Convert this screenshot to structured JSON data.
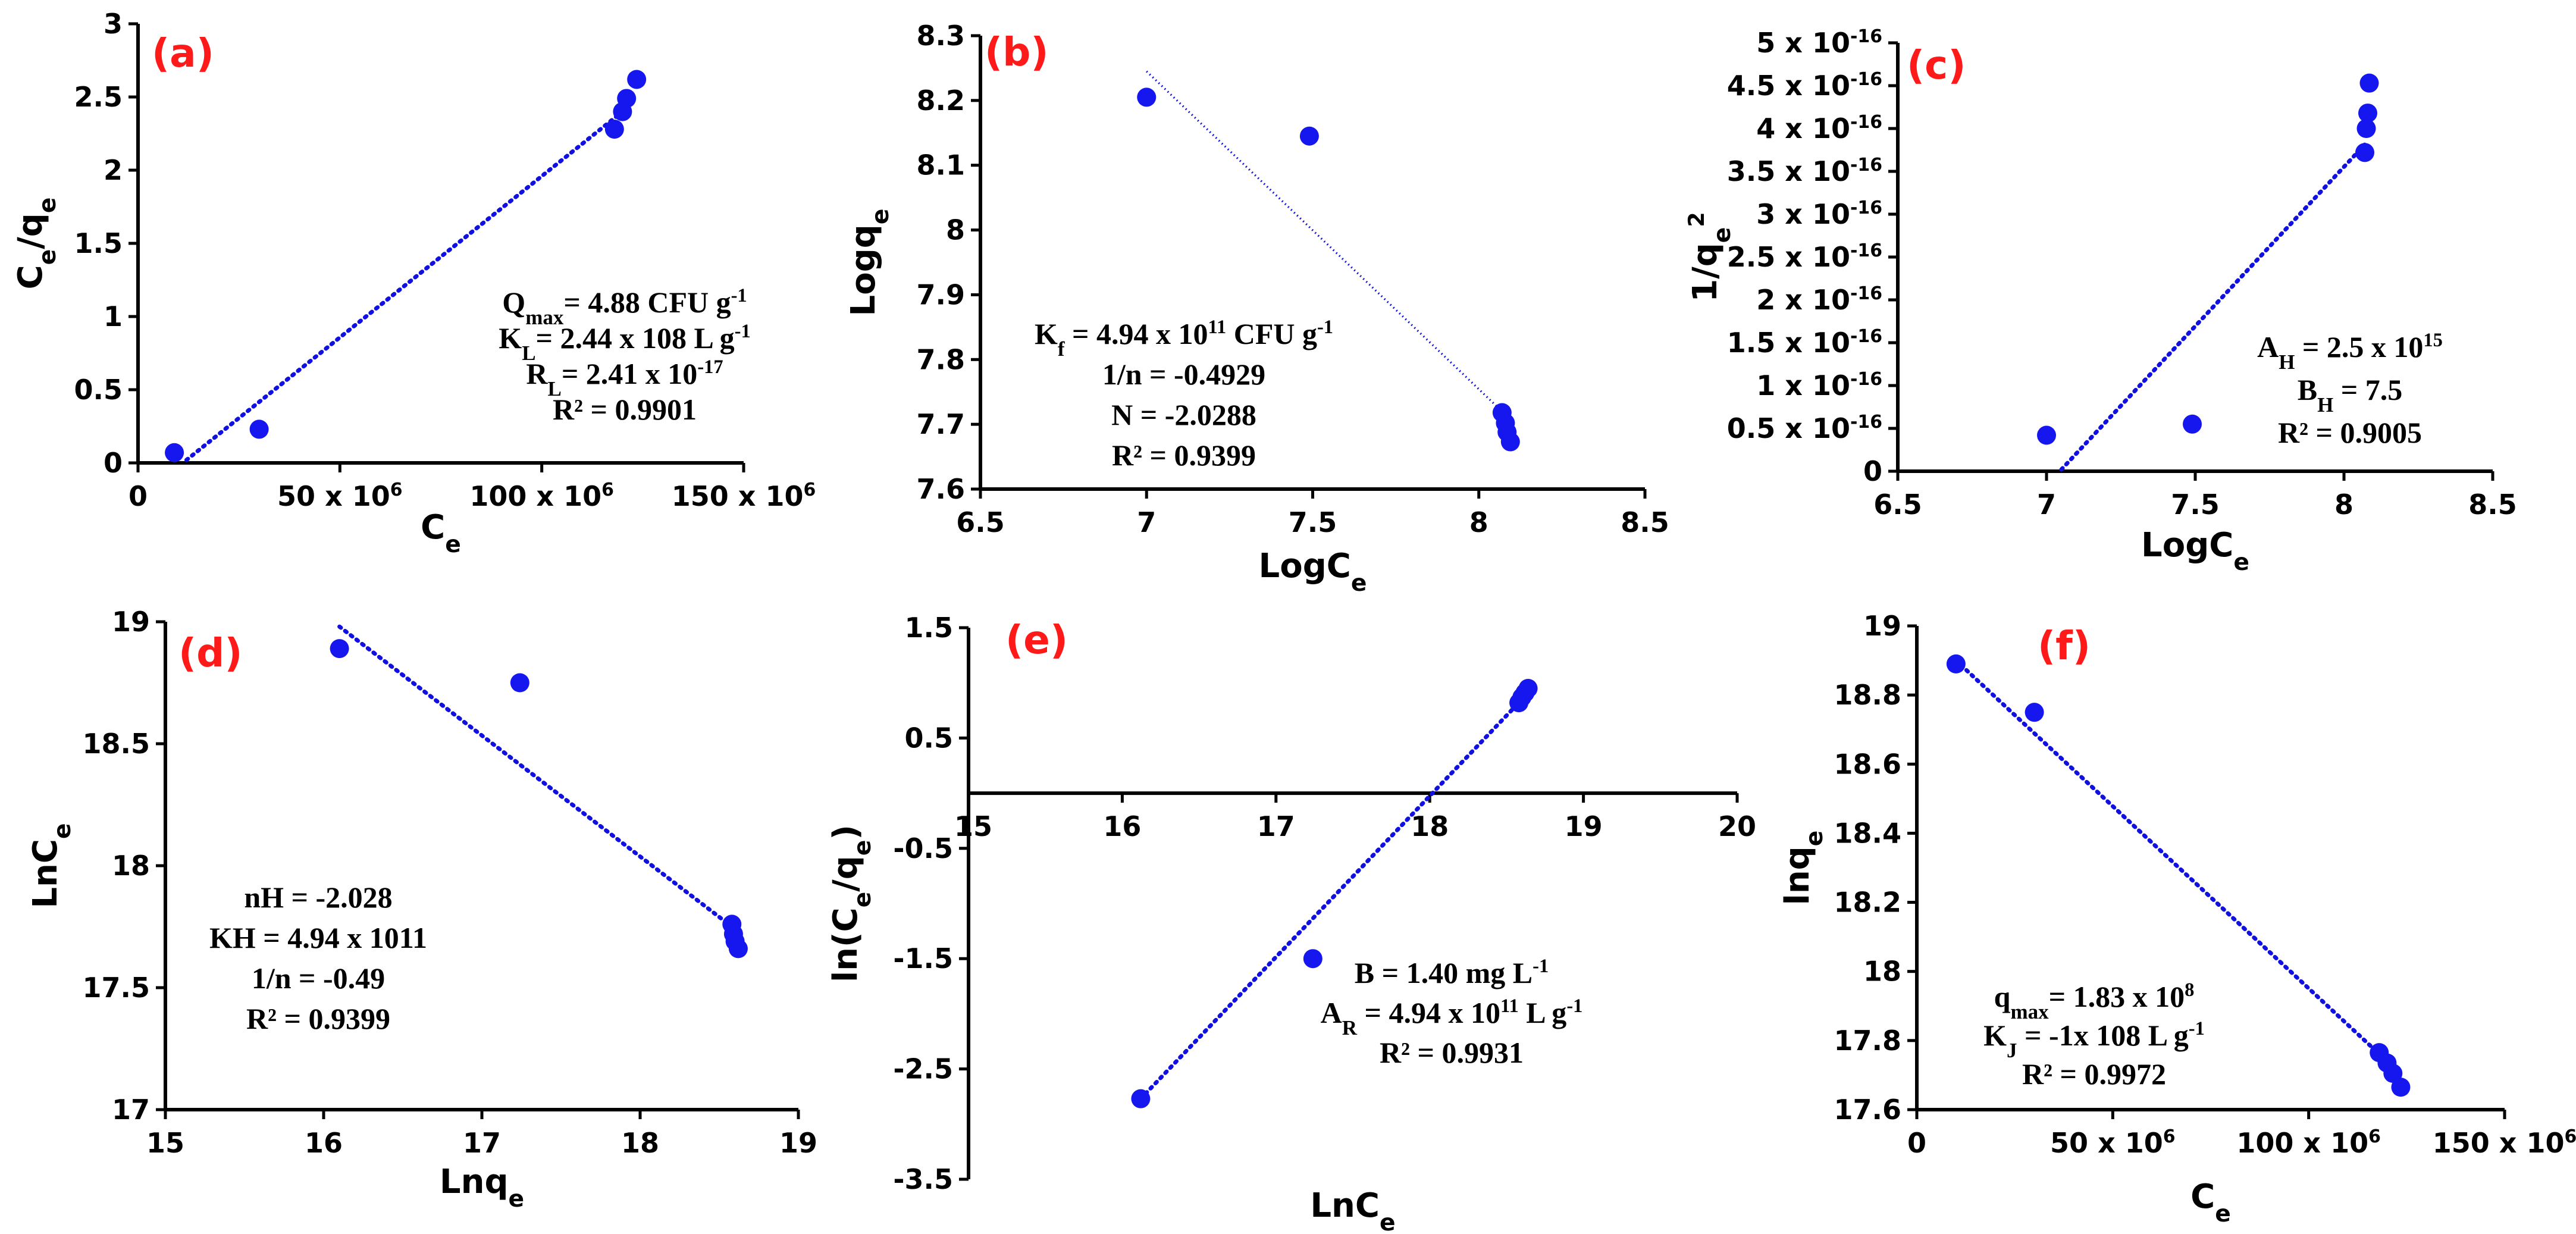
{
  "colors": {
    "points": "#1616ee",
    "fit_line": "#1010e0",
    "panel_tag": "#ff1a1a",
    "axes": "#000000"
  },
  "chart_data": [
    {
      "id": "a",
      "tag": "(a)",
      "type": "scatter",
      "xlabel": {
        "main": "C",
        "sub": "e"
      },
      "ylabel": {
        "main": "C",
        "sub1": "e",
        "mid": "/q",
        "sub2": "e"
      },
      "xlim": [
        0,
        150000000
      ],
      "ylim": [
        0,
        3
      ],
      "xticks": [
        {
          "v": 0,
          "label": "0"
        },
        {
          "v": 50000000,
          "label": "50 x 10",
          "exp": "6"
        },
        {
          "v": 100000000,
          "label": "100 x 10",
          "exp": "6"
        },
        {
          "v": 150000000,
          "label": "150 x 10",
          "exp": "6"
        }
      ],
      "yticks": [
        {
          "v": 0,
          "label": "0"
        },
        {
          "v": 0.5,
          "label": "0.5"
        },
        {
          "v": 1,
          "label": "1"
        },
        {
          "v": 1.5,
          "label": "1.5"
        },
        {
          "v": 2,
          "label": "2"
        },
        {
          "v": 2.5,
          "label": "2.5"
        },
        {
          "v": 3,
          "label": "3"
        }
      ],
      "points": [
        [
          9000000,
          0.07
        ],
        [
          30000000,
          0.23
        ],
        [
          118000000,
          2.28
        ],
        [
          120000000,
          2.4
        ],
        [
          121000000,
          2.49
        ],
        [
          123500000,
          2.62
        ]
      ],
      "fit": [
        [
          12000000,
          0.02
        ],
        [
          120000000,
          2.4
        ]
      ],
      "annotation": [
        [
          {
            "t": "Q"
          },
          {
            "t": "max",
            "sub": true
          },
          {
            "t": "= 4.88 CFU g"
          },
          {
            "t": "-1",
            "sup": true
          }
        ],
        [
          {
            "t": "K"
          },
          {
            "t": "L",
            "sub": true
          },
          {
            "t": "= 2.44 x 108 L g"
          },
          {
            "t": "-1",
            "sup": true
          }
        ],
        [
          {
            "t": "R"
          },
          {
            "t": "L",
            "sub": true
          },
          {
            "t": "= 2.41 x 10"
          },
          {
            "t": "-17",
            "sup": true
          }
        ],
        [
          {
            "t": "R² = 0.9901"
          }
        ]
      ]
    },
    {
      "id": "b",
      "tag": "(b)",
      "type": "scatter",
      "xlabel": {
        "main": "LogC",
        "sub": "e"
      },
      "ylabel": {
        "main": "Logq",
        "sub": "e"
      },
      "xlim": [
        6.5,
        8.5
      ],
      "ylim": [
        7.6,
        8.3
      ],
      "xticks": [
        {
          "v": 6.5,
          "label": "6.5"
        },
        {
          "v": 7,
          "label": "7"
        },
        {
          "v": 7.5,
          "label": "7.5"
        },
        {
          "v": 8,
          "label": "8"
        },
        {
          "v": 8.5,
          "label": "8.5"
        }
      ],
      "yticks": [
        {
          "v": 7.6,
          "label": "7.6"
        },
        {
          "v": 7.7,
          "label": "7.7"
        },
        {
          "v": 7.8,
          "label": "7.8"
        },
        {
          "v": 7.9,
          "label": "7.9"
        },
        {
          "v": 8,
          "label": "8"
        },
        {
          "v": 8.1,
          "label": "8.1"
        },
        {
          "v": 8.2,
          "label": "8.2"
        },
        {
          "v": 8.3,
          "label": "8.3"
        }
      ],
      "points": [
        [
          7.0,
          8.205
        ],
        [
          7.49,
          8.145
        ],
        [
          8.07,
          7.718
        ],
        [
          8.08,
          7.702
        ],
        [
          8.085,
          7.688
        ],
        [
          8.095,
          7.673
        ]
      ],
      "fit": [
        [
          7.0,
          8.245
        ],
        [
          8.08,
          7.715
        ]
      ],
      "annotation": [
        [
          {
            "t": "K"
          },
          {
            "t": "f",
            "sub": true
          },
          {
            "t": " = 4.94 x 10"
          },
          {
            "t": "11",
            "sup": true
          },
          {
            "t": " CFU g"
          },
          {
            "t": "-1",
            "sup": true
          }
        ],
        [
          {
            "t": "1/n = -0.4929"
          }
        ],
        [
          {
            "t": "N = -2.0288"
          }
        ],
        [
          {
            "t": "R² = 0.9399"
          }
        ]
      ]
    },
    {
      "id": "c",
      "tag": "(c)",
      "type": "scatter",
      "xlabel": {
        "main": "LogC",
        "sub": "e"
      },
      "ylabel": {
        "main": "1/q",
        "sub": "e",
        "sup": "2"
      },
      "xlim": [
        6.5,
        8.5
      ],
      "ylim": [
        0,
        5
      ],
      "xticks": [
        {
          "v": 6.5,
          "label": "6.5"
        },
        {
          "v": 7,
          "label": "7"
        },
        {
          "v": 7.5,
          "label": "7.5"
        },
        {
          "v": 8,
          "label": "8"
        },
        {
          "v": 8.5,
          "label": "8.5"
        }
      ],
      "yticks": [
        {
          "v": 0,
          "label": "0"
        },
        {
          "v": 0.5,
          "label": "0.5 x 10",
          "exp": "-16"
        },
        {
          "v": 1,
          "label": "1 x 10",
          "exp": "-16"
        },
        {
          "v": 1.5,
          "label": "1.5 x 10",
          "exp": "-16"
        },
        {
          "v": 2,
          "label": "2 x 10",
          "exp": "-16"
        },
        {
          "v": 2.5,
          "label": "2.5 x 10",
          "exp": "-16"
        },
        {
          "v": 3,
          "label": "3 x 10",
          "exp": "-16"
        },
        {
          "v": 3.5,
          "label": "3.5 x 10",
          "exp": "-16"
        },
        {
          "v": 4,
          "label": "4 x 10",
          "exp": "-16"
        },
        {
          "v": 4.5,
          "label": "4.5 x 10",
          "exp": "-16"
        },
        {
          "v": 5,
          "label": "5 x 10",
          "exp": "-16"
        }
      ],
      "y_unit_note": "values x 10^-16",
      "points": [
        [
          7.0,
          0.42
        ],
        [
          7.49,
          0.55
        ],
        [
          8.07,
          3.72
        ],
        [
          8.075,
          4.0
        ],
        [
          8.08,
          4.18
        ],
        [
          8.085,
          4.53
        ]
      ],
      "fit": [
        [
          7.05,
          0.02
        ],
        [
          8.08,
          3.85
        ]
      ],
      "annotation": [
        [
          {
            "t": "A"
          },
          {
            "t": "H",
            "sub": true
          },
          {
            "t": " = 2.5 x 10"
          },
          {
            "t": "15",
            "sup": true
          }
        ],
        [
          {
            "t": "B"
          },
          {
            "t": "H",
            "sub": true
          },
          {
            "t": " = 7.5"
          }
        ],
        [
          {
            "t": "R² = 0.9005"
          }
        ]
      ]
    },
    {
      "id": "d",
      "tag": "(d)",
      "type": "scatter",
      "xlabel": {
        "main": "Lnq",
        "sub": "e"
      },
      "ylabel": {
        "main": "LnC",
        "sub": "e"
      },
      "xlim": [
        15,
        19
      ],
      "ylim": [
        17,
        19
      ],
      "xticks": [
        {
          "v": 15,
          "label": "15"
        },
        {
          "v": 16,
          "label": "16"
        },
        {
          "v": 17,
          "label": "17"
        },
        {
          "v": 18,
          "label": "18"
        },
        {
          "v": 19,
          "label": "19"
        }
      ],
      "yticks": [
        {
          "v": 17,
          "label": "17"
        },
        {
          "v": 17.5,
          "label": "17.5"
        },
        {
          "v": 18,
          "label": "18"
        },
        {
          "v": 18.5,
          "label": "18.5"
        },
        {
          "v": 19,
          "label": "19"
        }
      ],
      "points": [
        [
          16.1,
          18.89
        ],
        [
          17.24,
          18.75
        ],
        [
          18.58,
          17.76
        ],
        [
          18.59,
          17.72
        ],
        [
          18.6,
          17.69
        ],
        [
          18.62,
          17.66
        ]
      ],
      "fit": [
        [
          16.1,
          18.98
        ],
        [
          18.6,
          17.74
        ]
      ],
      "annotation": [
        [
          {
            "t": "nH = -2.028"
          }
        ],
        [
          {
            "t": "KH = 4.94 x 1011"
          }
        ],
        [
          {
            "t": "1/n = -0.49"
          }
        ],
        [
          {
            "t": "R² = 0.9399"
          }
        ]
      ]
    },
    {
      "id": "e",
      "tag": "(e)",
      "type": "scatter",
      "xlabel": {
        "main": "LnC",
        "sub": "e"
      },
      "ylabel": {
        "main": "ln(C",
        "sub1": "e",
        "mid": "/q",
        "sub2": "e",
        "end": ")"
      },
      "xlim": [
        15,
        20
      ],
      "ylim": [
        -3.5,
        1.5
      ],
      "x_axis_at_y": 0,
      "xticks": [
        {
          "v": 15,
          "label": "15"
        },
        {
          "v": 16,
          "label": "16"
        },
        {
          "v": 17,
          "label": "17"
        },
        {
          "v": 18,
          "label": "18"
        },
        {
          "v": 19,
          "label": "19"
        },
        {
          "v": 20,
          "label": "20"
        }
      ],
      "yticks": [
        {
          "v": -3.5,
          "label": "-3.5"
        },
        {
          "v": -2.5,
          "label": "-2.5"
        },
        {
          "v": -1.5,
          "label": "-1.5"
        },
        {
          "v": -0.5,
          "label": "-0.5"
        },
        {
          "v": 0.5,
          "label": "0.5"
        },
        {
          "v": 1.5,
          "label": "1.5"
        }
      ],
      "points": [
        [
          16.12,
          -2.77
        ],
        [
          17.24,
          -1.5
        ],
        [
          18.58,
          0.82
        ],
        [
          18.6,
          0.87
        ],
        [
          18.62,
          0.91
        ],
        [
          18.64,
          0.95
        ]
      ],
      "fit": [
        [
          16.12,
          -2.77
        ],
        [
          18.6,
          0.85
        ]
      ],
      "annotation": [
        [
          {
            "t": "B = 1.40 mg L"
          },
          {
            "t": "-1",
            "sup": true
          }
        ],
        [
          {
            "t": "A"
          },
          {
            "t": "R",
            "sub": true
          },
          {
            "t": " = 4.94 x 10"
          },
          {
            "t": "11",
            "sup": true
          },
          {
            "t": " L g"
          },
          {
            "t": "-1",
            "sup": true
          }
        ],
        [
          {
            "t": "R² = 0.9931"
          }
        ]
      ]
    },
    {
      "id": "f",
      "tag": "(f)",
      "type": "scatter",
      "xlabel": {
        "main": "C",
        "sub": "e"
      },
      "ylabel": {
        "main": "lnq",
        "sub": "e"
      },
      "xlim": [
        0,
        150000000
      ],
      "ylim": [
        17.6,
        19
      ],
      "xticks": [
        {
          "v": 0,
          "label": "0"
        },
        {
          "v": 50000000,
          "label": "50 x 10",
          "exp": "6"
        },
        {
          "v": 100000000,
          "label": "100 x 10",
          "exp": "6"
        },
        {
          "v": 150000000,
          "label": "150 x 10",
          "exp": "6"
        }
      ],
      "yticks": [
        {
          "v": 17.6,
          "label": "17.6"
        },
        {
          "v": 17.8,
          "label": "17.8"
        },
        {
          "v": 18,
          "label": "18"
        },
        {
          "v": 18.2,
          "label": "18.2"
        },
        {
          "v": 18.4,
          "label": "18.4"
        },
        {
          "v": 18.6,
          "label": "18.6"
        },
        {
          "v": 18.8,
          "label": "18.8"
        },
        {
          "v": 19,
          "label": "19"
        }
      ],
      "points": [
        [
          10000000,
          18.89
        ],
        [
          30000000,
          18.75
        ],
        [
          118000000,
          17.765
        ],
        [
          120000000,
          17.735
        ],
        [
          121500000,
          17.705
        ],
        [
          123500000,
          17.665
        ]
      ],
      "fit": [
        [
          10000000,
          18.9
        ],
        [
          120000000,
          17.74
        ]
      ],
      "annotation": [
        [
          {
            "t": "q"
          },
          {
            "t": "max",
            "sub": true
          },
          {
            "t": "= 1.83 x 10"
          },
          {
            "t": "8",
            "sup": true
          }
        ],
        [
          {
            "t": "K"
          },
          {
            "t": "J",
            "sub": true
          },
          {
            "t": " = -1x 108 L g"
          },
          {
            "t": "-1",
            "sup": true
          }
        ],
        [
          {
            "t": "R² = 0.9972"
          }
        ]
      ]
    }
  ]
}
